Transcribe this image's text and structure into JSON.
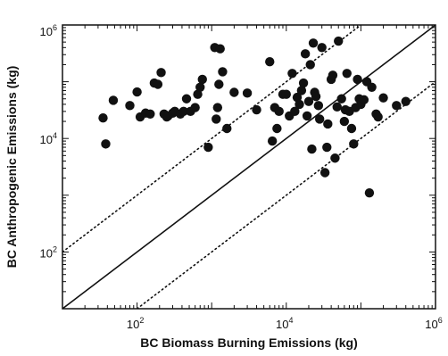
{
  "chart_data": {
    "type": "scatter",
    "title": "",
    "xlabel": "BC Biomass Burning Emissions (kg)",
    "ylabel": "BC Anthropogenic Emissions (kg)",
    "xscale": "log",
    "yscale": "log",
    "xlim": [
      10,
      1000000
    ],
    "ylim": [
      10,
      1000000
    ],
    "grid": false,
    "legend": "none",
    "x_ticks": [
      {
        "value": 100,
        "base": "10",
        "exp": "2"
      },
      {
        "value": 10000,
        "base": "10",
        "exp": "4"
      },
      {
        "value": 1000000,
        "base": "10",
        "exp": "6"
      }
    ],
    "y_ticks": [
      {
        "value": 100,
        "base": "10",
        "exp": "2"
      },
      {
        "value": 10000,
        "base": "10",
        "exp": "4"
      },
      {
        "value": 1000000,
        "base": "10",
        "exp": "6"
      }
    ],
    "reference_lines": [
      {
        "style": "solid",
        "ratio": 1
      },
      {
        "style": "dotted",
        "ratio": 10
      },
      {
        "style": "dotted",
        "ratio": 0.1
      }
    ],
    "marker_color": "#111111",
    "points": [
      [
        35,
        23000
      ],
      [
        38,
        8000
      ],
      [
        48,
        47000
      ],
      [
        80,
        38000
      ],
      [
        100,
        66000
      ],
      [
        110,
        24000
      ],
      [
        130,
        28000
      ],
      [
        150,
        27000
      ],
      [
        170,
        95000
      ],
      [
        190,
        90000
      ],
      [
        210,
        145000
      ],
      [
        230,
        27000
      ],
      [
        250,
        24000
      ],
      [
        260,
        25000
      ],
      [
        300,
        28000
      ],
      [
        320,
        30000
      ],
      [
        380,
        27000
      ],
      [
        420,
        30000
      ],
      [
        460,
        50000
      ],
      [
        520,
        30000
      ],
      [
        600,
        35000
      ],
      [
        650,
        60000
      ],
      [
        700,
        80000
      ],
      [
        750,
        110000
      ],
      [
        900,
        7000
      ],
      [
        1100,
        400000
      ],
      [
        1150,
        22000
      ],
      [
        1200,
        35000
      ],
      [
        1250,
        90000
      ],
      [
        1300,
        380000
      ],
      [
        1400,
        150000
      ],
      [
        1600,
        15000
      ],
      [
        2000,
        65000
      ],
      [
        3000,
        63000
      ],
      [
        4000,
        32000
      ],
      [
        6000,
        225000
      ],
      [
        6500,
        9000
      ],
      [
        7000,
        35000
      ],
      [
        7500,
        15000
      ],
      [
        8000,
        30000
      ],
      [
        9000,
        60000
      ],
      [
        10000,
        60000
      ],
      [
        11000,
        25000
      ],
      [
        12000,
        140000
      ],
      [
        13000,
        30000
      ],
      [
        14000,
        53000
      ],
      [
        15000,
        40000
      ],
      [
        16000,
        70000
      ],
      [
        17000,
        95000
      ],
      [
        18000,
        310000
      ],
      [
        19000,
        25000
      ],
      [
        20000,
        45000
      ],
      [
        21000,
        200000
      ],
      [
        22000,
        6500
      ],
      [
        23000,
        480000
      ],
      [
        24000,
        65000
      ],
      [
        25000,
        55000
      ],
      [
        27000,
        38000
      ],
      [
        28000,
        22000
      ],
      [
        30000,
        400000
      ],
      [
        33000,
        2500
      ],
      [
        35000,
        7000
      ],
      [
        36000,
        18000
      ],
      [
        40000,
        110000
      ],
      [
        42000,
        130000
      ],
      [
        45000,
        4500
      ],
      [
        48000,
        36000
      ],
      [
        50000,
        520000
      ],
      [
        55000,
        50000
      ],
      [
        60000,
        20000
      ],
      [
        62000,
        32000
      ],
      [
        65000,
        140000
      ],
      [
        70000,
        30000
      ],
      [
        75000,
        15000
      ],
      [
        80000,
        8000
      ],
      [
        85000,
        35000
      ],
      [
        90000,
        110000
      ],
      [
        95000,
        50000
      ],
      [
        100000,
        40000
      ],
      [
        110000,
        48000
      ],
      [
        120000,
        100000
      ],
      [
        130000,
        1100
      ],
      [
        140000,
        80000
      ],
      [
        160000,
        27000
      ],
      [
        170000,
        24000
      ],
      [
        200000,
        52000
      ],
      [
        300000,
        38000
      ],
      [
        400000,
        45000
      ]
    ]
  }
}
